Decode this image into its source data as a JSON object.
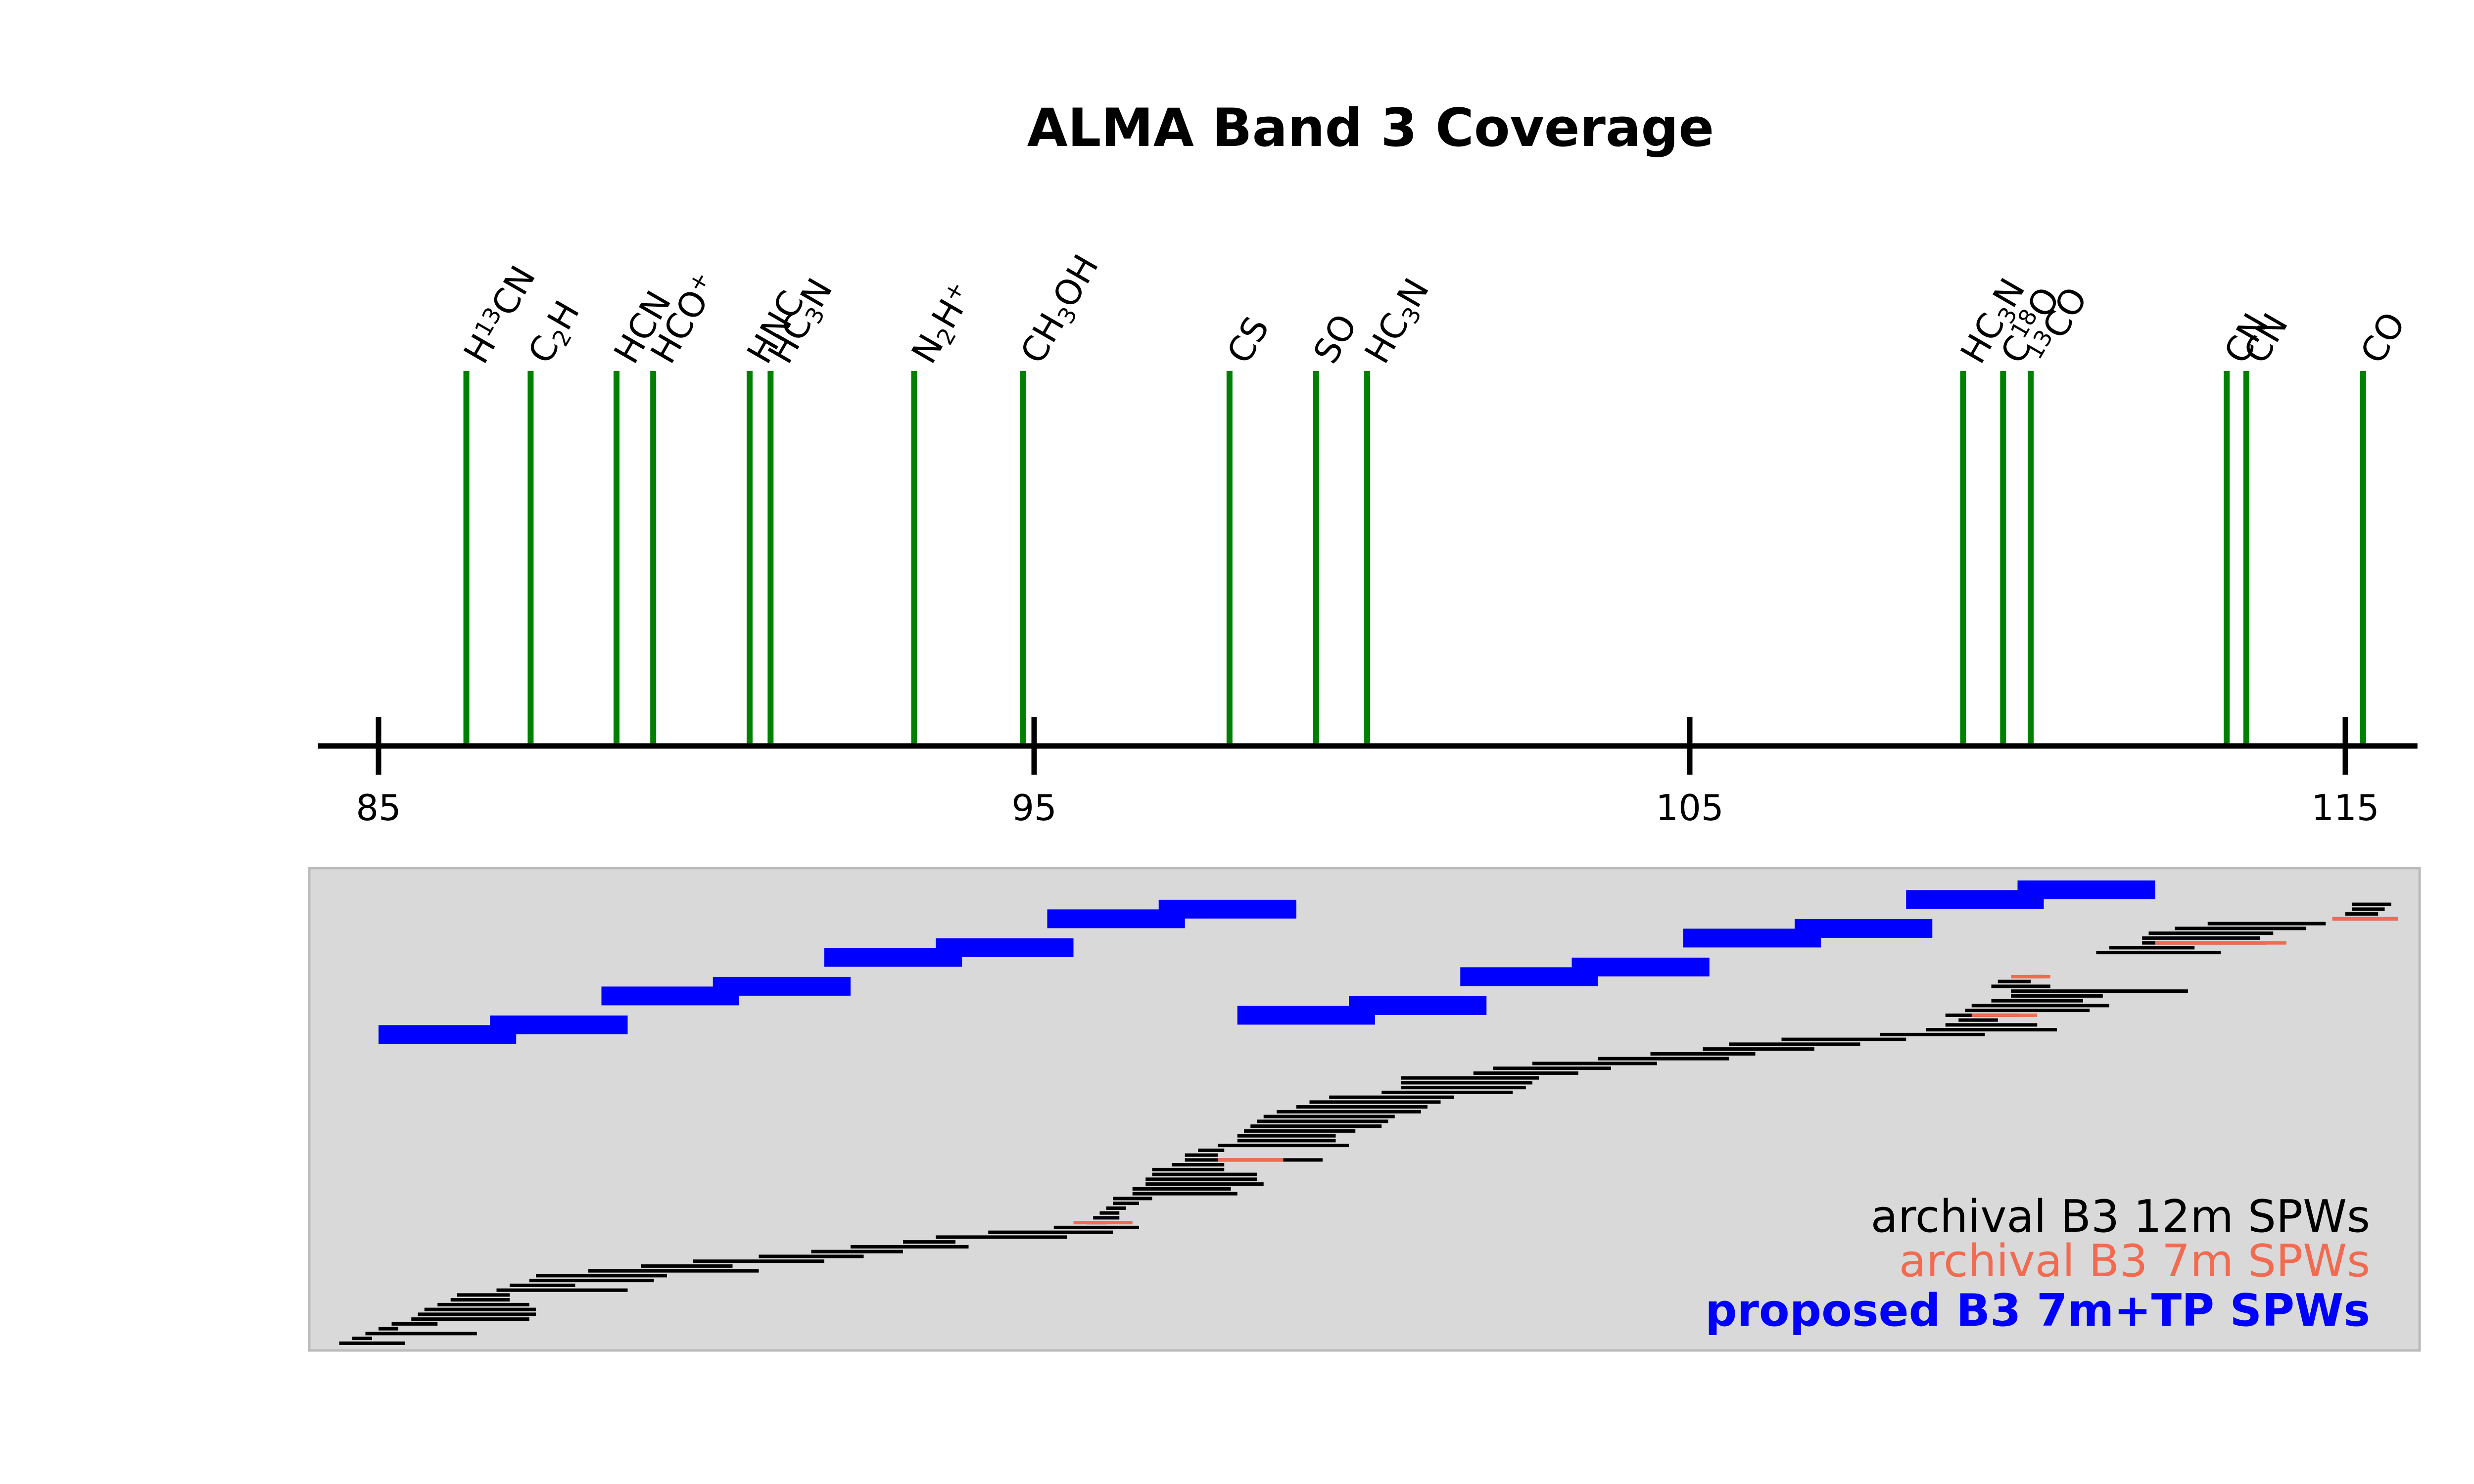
{
  "chart_data": {
    "type": "line",
    "title": "ALMA Band 3 Coverage",
    "xlabel": "",
    "ylabel": "",
    "xlim": [
      84,
      116.1
    ],
    "xticks": [
      85,
      95,
      105,
      115
    ],
    "xtick_labels": [
      "85",
      "95",
      "105",
      "115"
    ],
    "colors": {
      "lines": "#008000",
      "archival_12m": "#000000",
      "archival_7m": "#f26b50",
      "proposed": "#0000ff",
      "panel_bg": "#d9d9d9",
      "panel_border": "#bbbbbb"
    },
    "spectral_lines": [
      {
        "name": "H13CN",
        "label_parts": [
          [
            "H",
            ""
          ],
          [
            "13",
            "sup"
          ],
          [
            "CN",
            ""
          ]
        ],
        "freq": 86.34
      },
      {
        "name": "C2H",
        "label_parts": [
          [
            "C",
            ""
          ],
          [
            "2",
            "sub"
          ],
          [
            "H",
            ""
          ]
        ],
        "freq": 87.32
      },
      {
        "name": "HCN",
        "label_parts": [
          [
            "HCN",
            ""
          ]
        ],
        "freq": 88.63
      },
      {
        "name": "HCO+",
        "label_parts": [
          [
            "HCO",
            ""
          ],
          [
            "+",
            "sup"
          ]
        ],
        "freq": 89.19
      },
      {
        "name": "HNC",
        "label_parts": [
          [
            "HNC",
            ""
          ]
        ],
        "freq": 90.66
      },
      {
        "name": "HC3N",
        "label_parts": [
          [
            "HC",
            ""
          ],
          [
            "3",
            "sub"
          ],
          [
            "N",
            ""
          ]
        ],
        "freq": 90.98
      },
      {
        "name": "N2H+",
        "label_parts": [
          [
            "N",
            ""
          ],
          [
            "2",
            "sub"
          ],
          [
            "H",
            ""
          ],
          [
            "+",
            "sup"
          ]
        ],
        "freq": 93.17
      },
      {
        "name": "CH3OH",
        "label_parts": [
          [
            "CH",
            ""
          ],
          [
            "3",
            "sub"
          ],
          [
            "OH",
            ""
          ]
        ],
        "freq": 94.83
      },
      {
        "name": "CS",
        "label_parts": [
          [
            "CS",
            ""
          ]
        ],
        "freq": 97.98
      },
      {
        "name": "SO",
        "label_parts": [
          [
            "SO",
            ""
          ]
        ],
        "freq": 99.3
      },
      {
        "name": "HC3N",
        "label_parts": [
          [
            "HC",
            ""
          ],
          [
            "3",
            "sub"
          ],
          [
            "N",
            ""
          ]
        ],
        "freq": 100.08
      },
      {
        "name": "HC3N",
        "label_parts": [
          [
            "HC",
            ""
          ],
          [
            "3",
            "sub"
          ],
          [
            "N",
            ""
          ]
        ],
        "freq": 109.17
      },
      {
        "name": "C18O",
        "label_parts": [
          [
            "C",
            ""
          ],
          [
            "18",
            "sup"
          ],
          [
            "O",
            ""
          ]
        ],
        "freq": 109.78
      },
      {
        "name": "13CO",
        "label_parts": [
          [
            "13",
            "sup"
          ],
          [
            "CO",
            ""
          ]
        ],
        "freq": 110.2
      },
      {
        "name": "CN",
        "label_parts": [
          [
            "CN",
            ""
          ]
        ],
        "freq": 113.19
      },
      {
        "name": "CN",
        "label_parts": [
          [
            "CN",
            ""
          ]
        ],
        "freq": 113.49
      },
      {
        "name": "CO",
        "label_parts": [
          [
            "CO",
            ""
          ]
        ],
        "freq": 115.27
      }
    ],
    "series": [
      {
        "name": "proposed B3 7m+TP SPWs",
        "style": "bar-ranges",
        "ranges": [
          [
            85.0,
            87.1,
            0.655
          ],
          [
            86.7,
            88.8,
            0.675
          ],
          [
            88.4,
            90.5,
            0.735
          ],
          [
            90.1,
            92.2,
            0.755
          ],
          [
            91.8,
            93.9,
            0.815
          ],
          [
            93.5,
            95.6,
            0.835
          ],
          [
            95.2,
            97.3,
            0.895
          ],
          [
            96.9,
            99.0,
            0.915
          ],
          [
            98.1,
            100.2,
            0.695
          ],
          [
            99.8,
            101.9,
            0.715
          ],
          [
            101.5,
            103.6,
            0.775
          ],
          [
            103.2,
            105.3,
            0.795
          ],
          [
            104.9,
            107.0,
            0.855
          ],
          [
            106.6,
            108.7,
            0.875
          ],
          [
            108.3,
            110.4,
            0.935
          ],
          [
            110.0,
            112.1,
            0.955
          ]
        ]
      },
      {
        "name": "archival B3 12m SPWs",
        "style": "thin-ranges",
        "ranges": [
          [
            84.4,
            85.4,
            0.015
          ],
          [
            84.6,
            84.9,
            0.025
          ],
          [
            84.8,
            86.5,
            0.035
          ],
          [
            85.0,
            85.3,
            0.045
          ],
          [
            85.2,
            85.9,
            0.055
          ],
          [
            85.5,
            87.3,
            0.065
          ],
          [
            85.6,
            87.4,
            0.075
          ],
          [
            85.7,
            87.4,
            0.085
          ],
          [
            85.9,
            87.3,
            0.095
          ],
          [
            86.1,
            87.0,
            0.105
          ],
          [
            86.2,
            87.0,
            0.115
          ],
          [
            86.8,
            88.8,
            0.125
          ],
          [
            87.0,
            88.0,
            0.135
          ],
          [
            87.3,
            89.2,
            0.145
          ],
          [
            87.4,
            89.4,
            0.155
          ],
          [
            88.2,
            90.8,
            0.165
          ],
          [
            89.0,
            90.4,
            0.175
          ],
          [
            89.8,
            91.8,
            0.185
          ],
          [
            90.8,
            92.4,
            0.195
          ],
          [
            91.6,
            93.0,
            0.205
          ],
          [
            92.2,
            94.0,
            0.215
          ],
          [
            93.0,
            93.8,
            0.225
          ],
          [
            93.5,
            95.5,
            0.235
          ],
          [
            94.3,
            96.2,
            0.245
          ],
          [
            95.3,
            96.6,
            0.255
          ],
          [
            95.8,
            96.1,
            0.265
          ],
          [
            95.9,
            96.3,
            0.275
          ],
          [
            96.0,
            96.3,
            0.285
          ],
          [
            96.1,
            96.4,
            0.295
          ],
          [
            96.2,
            96.6,
            0.305
          ],
          [
            96.2,
            96.8,
            0.315
          ],
          [
            96.5,
            98.1,
            0.325
          ],
          [
            96.5,
            98.0,
            0.335
          ],
          [
            96.7,
            98.5,
            0.345
          ],
          [
            96.7,
            98.4,
            0.355
          ],
          [
            96.8,
            98.4,
            0.365
          ],
          [
            96.8,
            97.9,
            0.375
          ],
          [
            97.1,
            97.9,
            0.385
          ],
          [
            97.3,
            99.4,
            0.395
          ],
          [
            97.3,
            97.8,
            0.405
          ],
          [
            97.5,
            97.9,
            0.415
          ],
          [
            97.8,
            99.8,
            0.425
          ],
          [
            98.1,
            99.6,
            0.435
          ],
          [
            98.1,
            99.6,
            0.445
          ],
          [
            98.2,
            99.9,
            0.455
          ],
          [
            98.3,
            100.3,
            0.465
          ],
          [
            98.4,
            100.4,
            0.475
          ],
          [
            98.5,
            100.5,
            0.485
          ],
          [
            98.7,
            100.9,
            0.495
          ],
          [
            99.0,
            101.0,
            0.505
          ],
          [
            99.2,
            101.2,
            0.515
          ],
          [
            99.5,
            101.4,
            0.525
          ],
          [
            100.3,
            102.3,
            0.535
          ],
          [
            100.6,
            102.5,
            0.545
          ],
          [
            100.6,
            102.6,
            0.555
          ],
          [
            100.6,
            102.7,
            0.565
          ],
          [
            101.7,
            103.3,
            0.575
          ],
          [
            102.0,
            103.8,
            0.585
          ],
          [
            102.6,
            104.5,
            0.595
          ],
          [
            103.6,
            105.6,
            0.605
          ],
          [
            104.4,
            106.0,
            0.615
          ],
          [
            105.2,
            106.9,
            0.625
          ],
          [
            105.6,
            107.6,
            0.635
          ],
          [
            106.4,
            108.3,
            0.645
          ],
          [
            107.9,
            109.5,
            0.655
          ],
          [
            108.6,
            110.6,
            0.665
          ],
          [
            108.9,
            110.3,
            0.675
          ],
          [
            109.1,
            109.7,
            0.685
          ],
          [
            108.9,
            110.0,
            0.695
          ],
          [
            109.2,
            111.1,
            0.705
          ],
          [
            109.3,
            111.4,
            0.715
          ],
          [
            109.6,
            111.0,
            0.725
          ],
          [
            109.9,
            111.3,
            0.735
          ],
          [
            109.9,
            112.6,
            0.745
          ],
          [
            109.6,
            110.5,
            0.755
          ],
          [
            109.7,
            110.2,
            0.765
          ],
          [
            110.2,
            110.4,
            0.775
          ],
          [
            111.2,
            113.1,
            0.825
          ],
          [
            111.4,
            112.7,
            0.835
          ],
          [
            111.9,
            113.8,
            0.845
          ],
          [
            111.9,
            113.7,
            0.855
          ],
          [
            112.0,
            113.9,
            0.865
          ],
          [
            112.4,
            114.4,
            0.875
          ],
          [
            112.9,
            114.7,
            0.885
          ],
          [
            114.8,
            115.8,
            0.895
          ],
          [
            115.0,
            115.5,
            0.905
          ],
          [
            115.1,
            115.6,
            0.915
          ],
          [
            115.1,
            115.7,
            0.925
          ]
        ]
      },
      {
        "name": "archival B3 7m SPWs",
        "style": "thin-ranges",
        "ranges": [
          [
            95.6,
            96.5,
            0.265
          ],
          [
            97.8,
            98.8,
            0.395
          ],
          [
            109.9,
            110.5,
            0.775
          ],
          [
            109.3,
            110.3,
            0.695
          ],
          [
            112.1,
            114.1,
            0.845
          ],
          [
            114.8,
            115.8,
            0.895
          ]
        ]
      }
    ],
    "legend": {
      "placement": "lower-right",
      "entries": [
        "archival B3 12m SPWs",
        "archival B3 7m SPWs",
        "proposed B3 7m+TP SPWs"
      ]
    }
  }
}
